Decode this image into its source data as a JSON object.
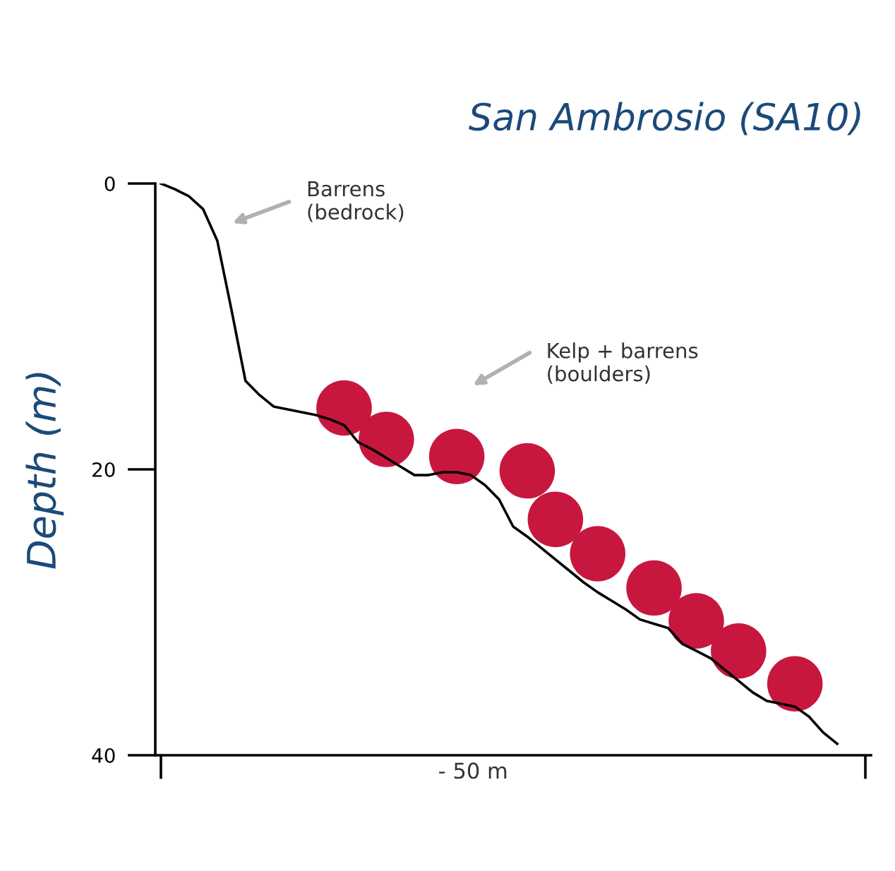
{
  "chart_data": {
    "type": "line",
    "title": "San Ambrosio (SA10)",
    "ylabel": "Depth (m)",
    "categories": [
      null,
      null,
      null,
      null,
      null,
      null,
      null,
      null,
      null,
      null,
      null,
      null,
      null,
      null,
      null,
      null,
      null,
      null,
      null,
      null,
      null,
      null,
      null,
      null,
      null,
      null,
      null,
      null,
      null,
      null,
      null,
      null,
      null,
      null,
      null,
      null,
      null,
      null,
      null,
      null,
      null,
      null,
      null,
      null,
      null,
      null,
      null,
      null,
      null,
      null,
      null
    ],
    "ylim": [
      40,
      0
    ],
    "yticks": [
      0,
      20,
      40
    ],
    "series": [
      {
        "color": "#000000",
        "values": [
          0,
          0.4,
          0.9,
          1.8,
          4.0,
          8.8,
          13.8,
          14.8,
          15.6,
          15.8,
          16.0,
          16.2,
          16.5,
          16.9,
          18.1,
          18.6,
          19.2,
          19.8,
          20.4,
          20.4,
          20.2,
          20.2,
          20.4,
          21.1,
          22.1,
          24.0,
          24.7,
          25.5,
          26.3,
          27.1,
          27.9,
          28.6,
          29.2,
          29.8,
          30.5,
          30.8,
          31.1,
          32.2,
          32.7,
          33.2,
          34.0,
          34.8,
          35.6,
          36.2,
          36.4,
          36.6,
          37.3,
          38.4,
          39.2,
          null,
          null
        ]
      },
      {
        "type": "scatter",
        "color": "#c8173f",
        "marker": "circle",
        "values": [
          null,
          null,
          null,
          null,
          null,
          null,
          null,
          null,
          null,
          null,
          null,
          null,
          null,
          15.7,
          null,
          null,
          17.9,
          null,
          null,
          null,
          null,
          19.1,
          null,
          null,
          null,
          null,
          20.1,
          null,
          23.5,
          null,
          null,
          25.9,
          null,
          null,
          null,
          28.3,
          null,
          null,
          30.6,
          null,
          null,
          32.7,
          null,
          null,
          null,
          35.0,
          null,
          null,
          null,
          null,
          null
        ]
      }
    ],
    "annotations": [
      "Barrens\n(bedrock)",
      "Kelp + barrens\n(boulders)",
      "- 50 m"
    ]
  }
}
